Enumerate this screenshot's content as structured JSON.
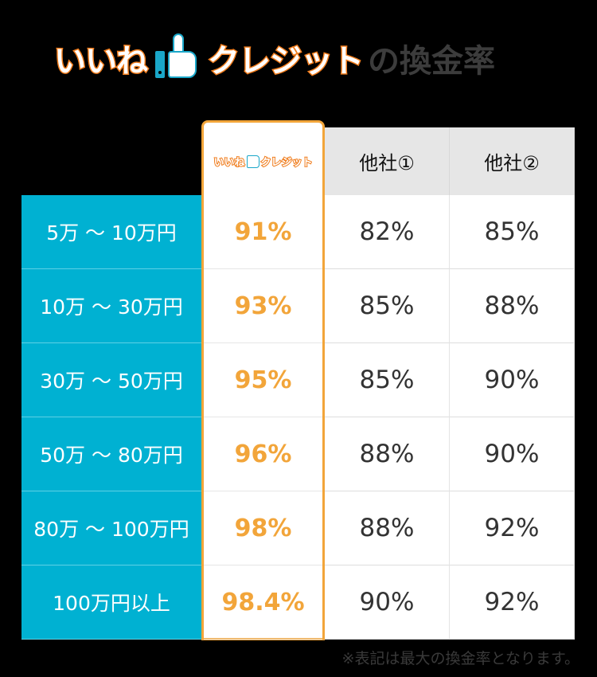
{
  "title": {
    "brand_left": "いいね",
    "brand_icon": "thumbs-up-icon",
    "brand_right": "クレジット",
    "suffix": "の換金率"
  },
  "table": {
    "columns": [
      {
        "label": "いいね👍クレジット",
        "logo_left": "いいね",
        "logo_right": "クレジット",
        "highlight": true
      },
      {
        "label": "他社①"
      },
      {
        "label": "他社②"
      }
    ],
    "rows": [
      {
        "range": "5万 ～ 10万円",
        "ours": "91%",
        "other1": "82%",
        "other2": "85%"
      },
      {
        "range": "10万 ～ 30万円",
        "ours": "93%",
        "other1": "85%",
        "other2": "88%"
      },
      {
        "range": "30万 ～ 50万円",
        "ours": "95%",
        "other1": "85%",
        "other2": "90%"
      },
      {
        "range": "50万 ～ 80万円",
        "ours": "96%",
        "other1": "88%",
        "other2": "90%"
      },
      {
        "range": "80万 ～ 100万円",
        "ours": "98%",
        "other1": "88%",
        "other2": "92%"
      },
      {
        "range": "100万円以上",
        "ours": "98.4%",
        "other1": "90%",
        "other2": "92%"
      }
    ]
  },
  "note": "※表記は最大の換金率となります。",
  "colors": {
    "accent_orange": "#f2a53a",
    "brand_orange": "#f07c1c",
    "teal": "#00b1d2",
    "header_gray": "#e6e6e6"
  }
}
